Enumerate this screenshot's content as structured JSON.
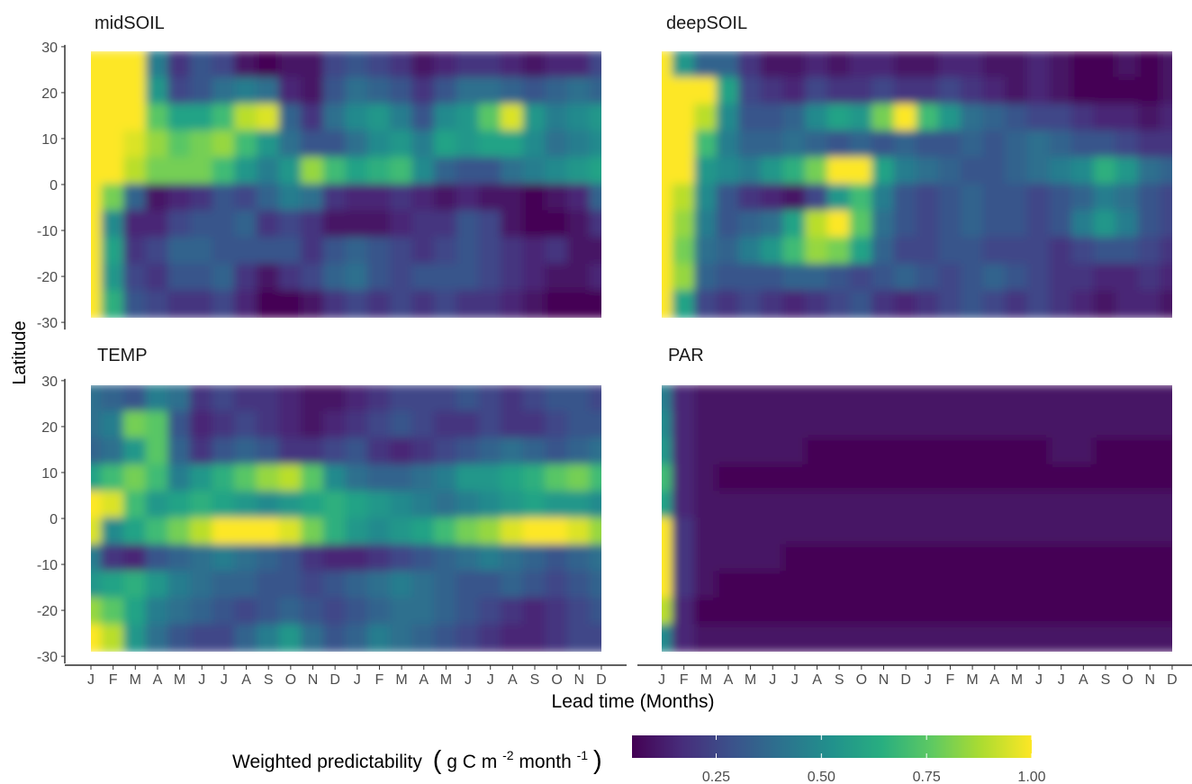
{
  "chart_data": {
    "type": "heatmap",
    "panels": [
      {
        "title": "midSOIL",
        "rows": [
          [
            1.0,
            1.0,
            1.0,
            0.45,
            0.2,
            0.3,
            0.25,
            0.1,
            0.05,
            0.1,
            0.1,
            0.25,
            0.3,
            0.25,
            0.2,
            0.1,
            0.15,
            0.2,
            0.2,
            0.15,
            0.1,
            0.15,
            0.15,
            0.25
          ],
          [
            1.0,
            1.0,
            1.0,
            0.55,
            0.25,
            0.3,
            0.4,
            0.45,
            0.4,
            0.15,
            0.1,
            0.3,
            0.4,
            0.35,
            0.3,
            0.2,
            0.3,
            0.4,
            0.4,
            0.35,
            0.3,
            0.35,
            0.4,
            0.35
          ],
          [
            1.0,
            1.0,
            1.0,
            0.75,
            0.6,
            0.6,
            0.7,
            0.9,
            0.95,
            0.35,
            0.2,
            0.4,
            0.5,
            0.55,
            0.45,
            0.3,
            0.5,
            0.55,
            0.75,
            0.95,
            0.55,
            0.45,
            0.5,
            0.55
          ],
          [
            1.0,
            1.0,
            0.95,
            0.85,
            0.75,
            0.8,
            0.85,
            0.7,
            0.55,
            0.4,
            0.3,
            0.3,
            0.4,
            0.5,
            0.55,
            0.45,
            0.6,
            0.55,
            0.6,
            0.6,
            0.5,
            0.4,
            0.45,
            0.5
          ],
          [
            1.0,
            1.0,
            0.9,
            0.8,
            0.8,
            0.8,
            0.7,
            0.55,
            0.45,
            0.55,
            0.85,
            0.7,
            0.6,
            0.65,
            0.7,
            0.5,
            0.35,
            0.3,
            0.3,
            0.4,
            0.45,
            0.5,
            0.55,
            0.6
          ],
          [
            1.0,
            0.8,
            0.35,
            0.1,
            0.15,
            0.2,
            0.3,
            0.25,
            0.35,
            0.45,
            0.4,
            0.2,
            0.15,
            0.15,
            0.2,
            0.15,
            0.1,
            0.15,
            0.1,
            0.1,
            0.05,
            0.1,
            0.15,
            0.35
          ],
          [
            1.0,
            0.5,
            0.15,
            0.15,
            0.25,
            0.3,
            0.3,
            0.35,
            0.2,
            0.25,
            0.2,
            0.1,
            0.1,
            0.1,
            0.15,
            0.2,
            0.2,
            0.3,
            0.25,
            0.1,
            0.05,
            0.05,
            0.1,
            0.2
          ],
          [
            1.0,
            0.6,
            0.2,
            0.25,
            0.35,
            0.35,
            0.3,
            0.3,
            0.3,
            0.3,
            0.2,
            0.3,
            0.35,
            0.3,
            0.25,
            0.2,
            0.25,
            0.3,
            0.25,
            0.2,
            0.15,
            0.2,
            0.1,
            0.1
          ],
          [
            1.0,
            0.55,
            0.25,
            0.2,
            0.3,
            0.3,
            0.35,
            0.2,
            0.1,
            0.2,
            0.25,
            0.35,
            0.4,
            0.3,
            0.25,
            0.3,
            0.3,
            0.3,
            0.25,
            0.2,
            0.15,
            0.1,
            0.1,
            0.15
          ],
          [
            1.0,
            0.65,
            0.3,
            0.25,
            0.2,
            0.2,
            0.25,
            0.15,
            0.05,
            0.05,
            0.1,
            0.2,
            0.25,
            0.2,
            0.25,
            0.2,
            0.25,
            0.2,
            0.2,
            0.15,
            0.1,
            0.05,
            0.05,
            0.05
          ]
        ]
      },
      {
        "title": "deepSOIL",
        "rows": [
          [
            1.0,
            0.55,
            0.35,
            0.35,
            0.2,
            0.1,
            0.1,
            0.15,
            0.1,
            0.15,
            0.15,
            0.1,
            0.1,
            0.15,
            0.15,
            0.1,
            0.1,
            0.15,
            0.1,
            0.05,
            0.05,
            0.1,
            0.05,
            0.1
          ],
          [
            1.0,
            1.0,
            1.0,
            0.6,
            0.25,
            0.2,
            0.15,
            0.25,
            0.2,
            0.2,
            0.25,
            0.2,
            0.2,
            0.25,
            0.2,
            0.15,
            0.1,
            0.15,
            0.1,
            0.05,
            0.05,
            0.05,
            0.05,
            0.1
          ],
          [
            1.0,
            1.0,
            0.9,
            0.5,
            0.3,
            0.3,
            0.35,
            0.5,
            0.6,
            0.55,
            0.8,
            1.0,
            0.7,
            0.55,
            0.4,
            0.35,
            0.3,
            0.25,
            0.25,
            0.2,
            0.15,
            0.15,
            0.1,
            0.15
          ],
          [
            1.0,
            1.0,
            0.7,
            0.45,
            0.35,
            0.35,
            0.4,
            0.35,
            0.3,
            0.35,
            0.3,
            0.35,
            0.3,
            0.3,
            0.35,
            0.3,
            0.35,
            0.4,
            0.35,
            0.3,
            0.3,
            0.25,
            0.2,
            0.2
          ],
          [
            1.0,
            1.0,
            0.55,
            0.5,
            0.45,
            0.55,
            0.65,
            0.8,
            1.0,
            1.0,
            0.6,
            0.45,
            0.4,
            0.35,
            0.3,
            0.3,
            0.35,
            0.4,
            0.45,
            0.5,
            0.65,
            0.55,
            0.4,
            0.35
          ],
          [
            1.0,
            0.9,
            0.5,
            0.3,
            0.2,
            0.15,
            0.1,
            0.25,
            0.55,
            0.7,
            0.45,
            0.3,
            0.25,
            0.3,
            0.35,
            0.3,
            0.3,
            0.25,
            0.3,
            0.35,
            0.45,
            0.4,
            0.3,
            0.25
          ],
          [
            1.0,
            0.85,
            0.45,
            0.3,
            0.35,
            0.4,
            0.6,
            0.9,
            1.0,
            0.75,
            0.4,
            0.3,
            0.25,
            0.3,
            0.35,
            0.3,
            0.3,
            0.25,
            0.3,
            0.45,
            0.55,
            0.45,
            0.3,
            0.25
          ],
          [
            1.0,
            0.8,
            0.4,
            0.35,
            0.45,
            0.55,
            0.7,
            0.85,
            0.8,
            0.6,
            0.35,
            0.25,
            0.25,
            0.3,
            0.3,
            0.25,
            0.25,
            0.25,
            0.2,
            0.25,
            0.3,
            0.3,
            0.25,
            0.2
          ],
          [
            1.0,
            0.85,
            0.35,
            0.3,
            0.3,
            0.3,
            0.35,
            0.35,
            0.3,
            0.25,
            0.3,
            0.35,
            0.3,
            0.25,
            0.3,
            0.35,
            0.3,
            0.25,
            0.2,
            0.2,
            0.15,
            0.15,
            0.2,
            0.15
          ],
          [
            1.0,
            0.6,
            0.25,
            0.2,
            0.25,
            0.2,
            0.15,
            0.2,
            0.25,
            0.3,
            0.2,
            0.15,
            0.2,
            0.25,
            0.3,
            0.25,
            0.2,
            0.25,
            0.2,
            0.15,
            0.1,
            0.15,
            0.15,
            0.1
          ]
        ]
      },
      {
        "title": "TEMP",
        "rows": [
          [
            0.4,
            0.35,
            0.3,
            0.45,
            0.4,
            0.2,
            0.25,
            0.2,
            0.2,
            0.15,
            0.1,
            0.1,
            0.15,
            0.2,
            0.25,
            0.25,
            0.25,
            0.3,
            0.25,
            0.2,
            0.25,
            0.3,
            0.3,
            0.25
          ],
          [
            0.4,
            0.45,
            0.8,
            0.75,
            0.3,
            0.15,
            0.2,
            0.25,
            0.2,
            0.15,
            0.1,
            0.15,
            0.2,
            0.25,
            0.3,
            0.25,
            0.2,
            0.2,
            0.25,
            0.2,
            0.2,
            0.25,
            0.3,
            0.3
          ],
          [
            0.35,
            0.4,
            0.55,
            0.75,
            0.35,
            0.2,
            0.3,
            0.35,
            0.3,
            0.2,
            0.2,
            0.25,
            0.3,
            0.2,
            0.15,
            0.2,
            0.25,
            0.3,
            0.35,
            0.4,
            0.35,
            0.3,
            0.35,
            0.4
          ],
          [
            0.6,
            0.7,
            0.8,
            0.7,
            0.45,
            0.55,
            0.65,
            0.75,
            0.85,
            0.9,
            0.75,
            0.5,
            0.4,
            0.35,
            0.35,
            0.4,
            0.45,
            0.55,
            0.55,
            0.6,
            0.65,
            0.75,
            0.8,
            0.7
          ],
          [
            1.0,
            0.95,
            0.7,
            0.55,
            0.6,
            0.65,
            0.6,
            0.55,
            0.5,
            0.55,
            0.6,
            0.65,
            0.6,
            0.55,
            0.5,
            0.45,
            0.4,
            0.45,
            0.5,
            0.55,
            0.6,
            0.55,
            0.55,
            0.5
          ],
          [
            0.95,
            0.5,
            0.6,
            0.7,
            0.8,
            0.9,
            1.0,
            1.0,
            1.0,
            0.95,
            0.8,
            0.65,
            0.55,
            0.5,
            0.55,
            0.6,
            0.7,
            0.8,
            0.85,
            0.95,
            1.0,
            1.0,
            0.95,
            0.85
          ],
          [
            0.45,
            0.2,
            0.15,
            0.3,
            0.35,
            0.4,
            0.45,
            0.4,
            0.35,
            0.3,
            0.2,
            0.15,
            0.15,
            0.2,
            0.25,
            0.3,
            0.35,
            0.4,
            0.45,
            0.4,
            0.35,
            0.3,
            0.35,
            0.4
          ],
          [
            0.55,
            0.6,
            0.65,
            0.55,
            0.45,
            0.4,
            0.35,
            0.35,
            0.3,
            0.3,
            0.25,
            0.3,
            0.35,
            0.4,
            0.45,
            0.4,
            0.35,
            0.3,
            0.3,
            0.35,
            0.3,
            0.25,
            0.3,
            0.35
          ],
          [
            0.85,
            0.75,
            0.6,
            0.45,
            0.4,
            0.35,
            0.3,
            0.25,
            0.3,
            0.35,
            0.3,
            0.25,
            0.3,
            0.35,
            0.4,
            0.4,
            0.35,
            0.3,
            0.25,
            0.2,
            0.15,
            0.2,
            0.25,
            0.3
          ],
          [
            1.0,
            0.9,
            0.55,
            0.4,
            0.3,
            0.25,
            0.25,
            0.35,
            0.45,
            0.55,
            0.4,
            0.3,
            0.35,
            0.45,
            0.4,
            0.35,
            0.3,
            0.25,
            0.2,
            0.15,
            0.15,
            0.2,
            0.25,
            0.25
          ]
        ]
      },
      {
        "title": "PAR",
        "rows": [
          [
            0.45,
            0.15,
            0.1,
            0.1,
            0.1,
            0.1,
            0.1,
            0.1,
            0.1,
            0.1,
            0.1,
            0.1,
            0.1,
            0.1,
            0.1,
            0.1,
            0.1,
            0.1,
            0.1,
            0.1,
            0.1,
            0.1,
            0.1,
            0.1
          ],
          [
            0.5,
            0.15,
            0.1,
            0.1,
            0.1,
            0.1,
            0.1,
            0.1,
            0.1,
            0.1,
            0.1,
            0.1,
            0.1,
            0.1,
            0.1,
            0.1,
            0.1,
            0.1,
            0.1,
            0.1,
            0.1,
            0.1,
            0.1,
            0.1
          ],
          [
            0.55,
            0.15,
            0.1,
            0.1,
            0.1,
            0.1,
            0.1,
            0.05,
            0.05,
            0.05,
            0.05,
            0.05,
            0.05,
            0.05,
            0.05,
            0.05,
            0.05,
            0.05,
            0.1,
            0.1,
            0.05,
            0.05,
            0.05,
            0.05
          ],
          [
            0.7,
            0.15,
            0.1,
            0.05,
            0.05,
            0.05,
            0.05,
            0.05,
            0.05,
            0.05,
            0.05,
            0.05,
            0.05,
            0.05,
            0.05,
            0.05,
            0.05,
            0.05,
            0.05,
            0.05,
            0.05,
            0.05,
            0.05,
            0.05
          ],
          [
            0.6,
            0.15,
            0.1,
            0.1,
            0.1,
            0.1,
            0.1,
            0.1,
            0.1,
            0.1,
            0.1,
            0.1,
            0.1,
            0.1,
            0.1,
            0.1,
            0.1,
            0.1,
            0.1,
            0.1,
            0.1,
            0.1,
            0.1,
            0.1
          ],
          [
            1.0,
            0.2,
            0.1,
            0.1,
            0.1,
            0.1,
            0.1,
            0.1,
            0.1,
            0.1,
            0.1,
            0.1,
            0.1,
            0.1,
            0.1,
            0.1,
            0.1,
            0.1,
            0.1,
            0.1,
            0.1,
            0.1,
            0.1,
            0.1
          ],
          [
            1.0,
            0.2,
            0.1,
            0.1,
            0.1,
            0.1,
            0.05,
            0.05,
            0.05,
            0.05,
            0.05,
            0.05,
            0.05,
            0.05,
            0.05,
            0.05,
            0.05,
            0.05,
            0.05,
            0.05,
            0.05,
            0.05,
            0.05,
            0.05
          ],
          [
            1.0,
            0.2,
            0.1,
            0.05,
            0.05,
            0.05,
            0.05,
            0.05,
            0.05,
            0.05,
            0.05,
            0.05,
            0.05,
            0.05,
            0.05,
            0.05,
            0.05,
            0.05,
            0.05,
            0.05,
            0.05,
            0.05,
            0.05,
            0.05
          ],
          [
            0.9,
            0.15,
            0.05,
            0.05,
            0.05,
            0.05,
            0.05,
            0.05,
            0.05,
            0.05,
            0.05,
            0.05,
            0.05,
            0.05,
            0.05,
            0.05,
            0.05,
            0.05,
            0.05,
            0.05,
            0.05,
            0.05,
            0.05,
            0.05
          ],
          [
            0.5,
            0.15,
            0.1,
            0.1,
            0.1,
            0.1,
            0.1,
            0.1,
            0.1,
            0.1,
            0.1,
            0.1,
            0.1,
            0.1,
            0.1,
            0.1,
            0.1,
            0.1,
            0.1,
            0.1,
            0.1,
            0.1,
            0.1,
            0.1
          ]
        ]
      }
    ],
    "xlabel": "Lead time (Months)",
    "ylabel": "Latitude",
    "x_tick_labels": [
      "J",
      "F",
      "M",
      "A",
      "M",
      "J",
      "J",
      "A",
      "S",
      "O",
      "N",
      "D",
      "J",
      "F",
      "M",
      "A",
      "M",
      "J",
      "J",
      "A",
      "S",
      "O",
      "N",
      "D"
    ],
    "y_ticks": [
      30,
      20,
      10,
      0,
      -10,
      -20,
      -30
    ],
    "y_tick_labels": [
      "30",
      "20",
      "10",
      "0",
      "-10",
      "-20",
      "-30"
    ],
    "lat_range": [
      -29,
      29
    ],
    "legend": {
      "title_main": "Weighted predictability",
      "title_unit_open": "(",
      "title_unit_a": "g C m",
      "title_unit_sup1": "-2",
      "title_unit_b": " month",
      "title_unit_sup2": "-1",
      "title_unit_close": ")",
      "ticks": [
        0.25,
        0.5,
        0.75,
        1.0
      ],
      "tick_labels": [
        "0.25",
        "0.50",
        "0.75",
        "1.00"
      ],
      "range": [
        0.05,
        1.0
      ],
      "colormap": "viridis",
      "position": "bottom"
    },
    "grid": false
  }
}
